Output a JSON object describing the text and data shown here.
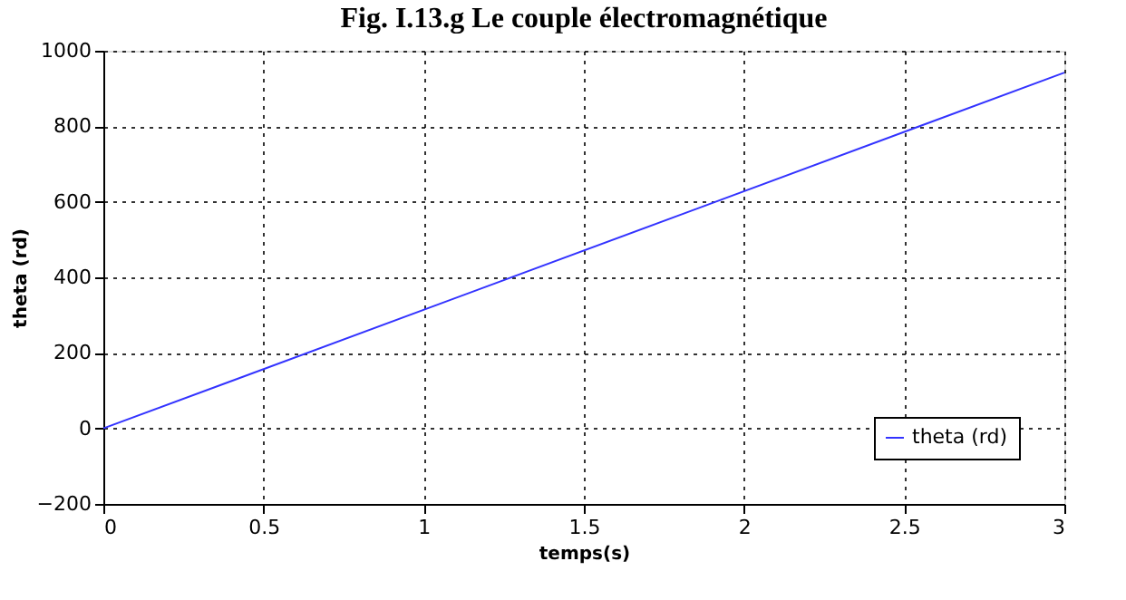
{
  "chart_data": {
    "type": "line",
    "title": "Fig. I.13.g Le couple électromagnétique",
    "xlabel": "temps(s)",
    "ylabel": "theta (rd)",
    "x": [
      0,
      3
    ],
    "series": [
      {
        "name": "theta (rd)",
        "color": "#3333ff",
        "values": [
          0,
          942
        ]
      }
    ],
    "xlim": [
      0,
      3
    ],
    "xticks": [
      0,
      0.5,
      1,
      1.5,
      2,
      2.5,
      3
    ],
    "ylim": [
      -200,
      1000
    ],
    "yticks": [
      -200,
      0,
      200,
      400,
      600,
      800,
      1000
    ],
    "grid": true,
    "legend": "bottom right",
    "line_style": "solid",
    "marker": "none"
  }
}
